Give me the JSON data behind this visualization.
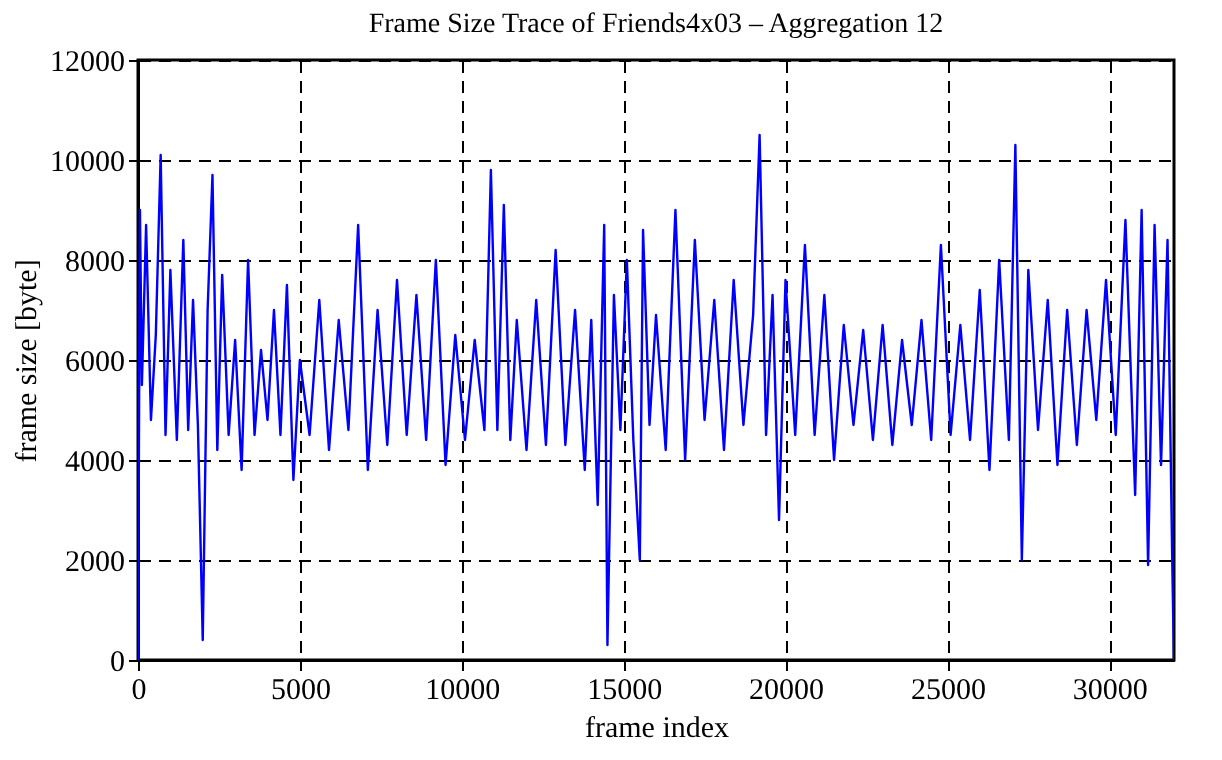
{
  "chart_data": {
    "type": "line",
    "title": "Frame Size Trace of Friends4x03 – Aggregation 12",
    "xlabel": "frame index",
    "ylabel": "frame size [byte]",
    "series": [
      {
        "color": "#0000ff",
        "x": [
          0,
          60,
          120,
          250,
          400,
          550,
          700,
          850,
          1000,
          1200,
          1400,
          1550,
          1700,
          1850,
          2000,
          2150,
          2300,
          2450,
          2600,
          2800,
          3000,
          3200,
          3400,
          3600,
          3800,
          4000,
          4200,
          4400,
          4600,
          4800,
          5000,
          5300,
          5600,
          5900,
          6200,
          6500,
          6800,
          7100,
          7400,
          7700,
          8000,
          8300,
          8600,
          8900,
          9200,
          9500,
          9800,
          10100,
          10400,
          10700,
          10900,
          11100,
          11300,
          11500,
          11700,
          12000,
          12300,
          12600,
          12900,
          13200,
          13500,
          13800,
          14000,
          14200,
          14400,
          14500,
          14700,
          14900,
          15100,
          15300,
          15500,
          15600,
          15800,
          16000,
          16300,
          16600,
          16900,
          17200,
          17500,
          17800,
          18100,
          18400,
          18700,
          19000,
          19200,
          19400,
          19600,
          19800,
          20000,
          20300,
          20600,
          20900,
          21200,
          21500,
          21800,
          22100,
          22400,
          22700,
          23000,
          23300,
          23600,
          23900,
          24200,
          24500,
          24800,
          25100,
          25400,
          25700,
          26000,
          26300,
          26600,
          26900,
          27100,
          27300,
          27500,
          27800,
          28100,
          28400,
          28700,
          29000,
          29300,
          29600,
          29900,
          30200,
          30500,
          30800,
          31000,
          31200,
          31400,
          31600,
          31800,
          31950,
          32000
        ],
        "values": [
          0,
          9000,
          5500,
          8700,
          4800,
          6500,
          10100,
          4500,
          7800,
          4400,
          8400,
          4600,
          7200,
          4700,
          400,
          7000,
          9700,
          4200,
          7700,
          4500,
          6400,
          3800,
          8000,
          4500,
          6200,
          4800,
          7000,
          4500,
          7500,
          3600,
          6000,
          4500,
          7200,
          4200,
          6800,
          4600,
          8700,
          3800,
          7000,
          4300,
          7600,
          4500,
          7300,
          4400,
          8000,
          3900,
          6500,
          4400,
          6400,
          4600,
          9800,
          4600,
          9100,
          4400,
          6800,
          4200,
          7200,
          4300,
          8200,
          4300,
          7000,
          3800,
          6800,
          3100,
          8700,
          300,
          7300,
          4600,
          8000,
          4400,
          2000,
          8600,
          4700,
          6900,
          4200,
          9000,
          4000,
          8400,
          4800,
          7200,
          4200,
          7600,
          4700,
          6900,
          10500,
          4500,
          7300,
          2800,
          7600,
          4500,
          8300,
          4500,
          7300,
          4000,
          6700,
          4700,
          6600,
          4400,
          6700,
          4300,
          6400,
          4700,
          6800,
          4400,
          8300,
          4500,
          6700,
          4400,
          7400,
          3800,
          8000,
          4400,
          10300,
          2000,
          7800,
          4600,
          7200,
          3900,
          7000,
          4300,
          7000,
          4800,
          7600,
          4500,
          8800,
          3300,
          9000,
          1900,
          8700,
          3900,
          8400,
          1800,
          0
        ]
      }
    ],
    "xlim": [
      0,
      32000
    ],
    "xticks": [
      0,
      5000,
      10000,
      15000,
      20000,
      25000,
      30000
    ],
    "ylim": [
      0,
      12000
    ],
    "yticks": [
      0,
      2000,
      4000,
      6000,
      8000,
      10000,
      12000
    ],
    "grid": true
  }
}
